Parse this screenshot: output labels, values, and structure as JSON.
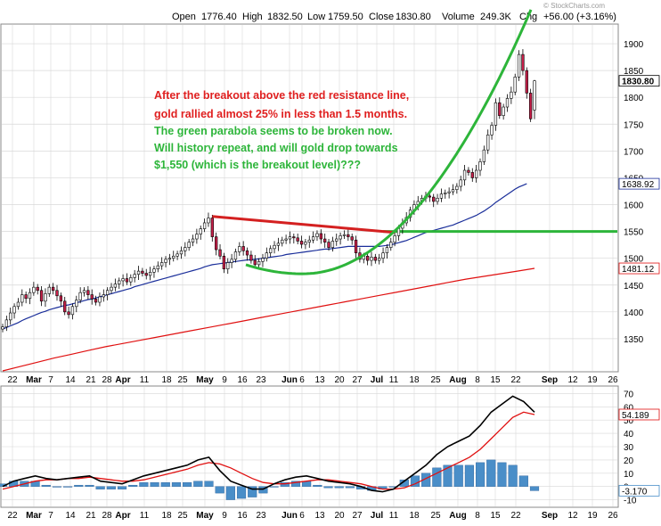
{
  "header": {
    "watermark": "© StockCharts.com",
    "open_label": "Open",
    "open": "1776.40",
    "high_label": "High",
    "high": "1832.50",
    "low_label": "Low",
    "low": "1759.50",
    "close_label": "Close",
    "close": "1830.80",
    "volume_label": "Volume",
    "volume": "249.3K",
    "chg_label": "Chg",
    "chg": "+56.00 (+3.16%)",
    "chg_arrow_color": "#00a000"
  },
  "annotation": {
    "line1": "After the breakout above the red resistance line,",
    "line2": "gold rallied almost 25% in less than 1.5 months.",
    "line3": "The green parabola seems to be broken now.",
    "line4": "Will history repeat, and will gold drop towards",
    "line5": "$1,550 (which is the breakout level)???",
    "red_color": "#e02020",
    "green_color": "#2db53a"
  },
  "colors": {
    "up_candle": "#ffffff",
    "down_candle": "#c8204a",
    "ma_short": "#1a2e9a",
    "ma_long": "#e01010",
    "resistance": "#d42020",
    "parabola": "#2db53a",
    "grid": "#d8d8d8",
    "macd": "#000000",
    "signal": "#e01010",
    "histogram": "#4a8ec8"
  },
  "chart_data": [
    {
      "type": "candlestick",
      "ylim": [
        1290,
        1935
      ],
      "y_ticks": [
        1350,
        1400,
        1450,
        1500,
        1550,
        1600,
        1650,
        1700,
        1750,
        1800,
        1850,
        1900
      ],
      "price_tags": [
        "1830.80",
        "1638.92",
        "1481.12"
      ],
      "price_tag_values": [
        1830.8,
        1638.92,
        1481.12
      ],
      "x_tick_labels": [
        "22",
        "Mar",
        "7",
        "14",
        "21",
        "28",
        "Apr",
        "11",
        "18",
        "25",
        "May",
        "9",
        "16",
        "23",
        "Jun",
        "6",
        "13",
        "20",
        "27",
        "Jul",
        "11",
        "18",
        "25",
        "Aug",
        "8",
        "15",
        "22",
        "Sep",
        "12",
        "19",
        "26"
      ],
      "last_candle": {
        "open": 1776.4,
        "high": 1832.5,
        "low": 1759.5,
        "close": 1830.8
      },
      "closes": [
        1372,
        1385,
        1398,
        1410,
        1418,
        1432,
        1425,
        1436,
        1446,
        1440,
        1420,
        1434,
        1446,
        1440,
        1430,
        1420,
        1400,
        1395,
        1410,
        1422,
        1436,
        1440,
        1432,
        1424,
        1418,
        1428,
        1432,
        1440,
        1446,
        1452,
        1458,
        1462,
        1456,
        1464,
        1470,
        1476,
        1472,
        1468,
        1474,
        1480,
        1486,
        1492,
        1498,
        1500,
        1504,
        1508,
        1514,
        1520,
        1530,
        1536,
        1545,
        1555,
        1566,
        1575,
        1540,
        1516,
        1504,
        1480,
        1492,
        1498,
        1512,
        1522,
        1514,
        1506,
        1496,
        1488,
        1494,
        1500,
        1510,
        1518,
        1524,
        1528,
        1534,
        1536,
        1540,
        1538,
        1532,
        1526,
        1530,
        1534,
        1540,
        1546,
        1536,
        1530,
        1520,
        1532,
        1536,
        1542,
        1544,
        1540,
        1534,
        1510,
        1498,
        1504,
        1496,
        1502,
        1496,
        1500,
        1510,
        1520,
        1530,
        1542,
        1556,
        1566,
        1576,
        1590,
        1600,
        1606,
        1612,
        1616,
        1614,
        1606,
        1612,
        1620,
        1622,
        1624,
        1628,
        1634,
        1646,
        1664,
        1660,
        1650,
        1664,
        1680,
        1702,
        1730,
        1748,
        1790,
        1766,
        1782,
        1798,
        1810,
        1838,
        1880,
        1850,
        1808,
        1760,
        1830.8
      ],
      "ma_short": {
        "name": "",
        "values": [
          1368,
          1371,
          1374,
          1377,
          1380,
          1384,
          1387,
          1390,
          1393,
          1396,
          1399,
          1401,
          1404,
          1406,
          1408,
          1410,
          1412,
          1413,
          1415,
          1417,
          1419,
          1421,
          1423,
          1424,
          1426,
          1428,
          1430,
          1432,
          1434,
          1436,
          1438,
          1440,
          1442,
          1444,
          1447,
          1449,
          1451,
          1453,
          1455,
          1457,
          1459,
          1461,
          1463,
          1465,
          1467,
          1469,
          1471,
          1473,
          1475,
          1477,
          1479,
          1481,
          1484,
          1486,
          1488,
          1489,
          1490,
          1491,
          1492,
          1493,
          1494,
          1495,
          1496,
          1497,
          1497,
          1498,
          1499,
          1500,
          1501,
          1502,
          1503,
          1504,
          1505,
          1507,
          1508,
          1509,
          1510,
          1511,
          1512,
          1513,
          1514,
          1515,
          1516,
          1517,
          1517,
          1518,
          1519,
          1520,
          1521,
          1522,
          1522,
          1522,
          1522,
          1522,
          1522,
          1522,
          1522,
          1522,
          1523,
          1524,
          1525,
          1527,
          1529,
          1531,
          1533,
          1536,
          1539,
          1542,
          1545,
          1548,
          1550,
          1552,
          1554,
          1556,
          1558,
          1560,
          1562,
          1565,
          1568,
          1571,
          1574,
          1577,
          1580,
          1584,
          1588,
          1593,
          1598,
          1604,
          1609,
          1614,
          1619,
          1624,
          1629,
          1633,
          1636,
          1638.92
        ]
      },
      "ma_long": {
        "name": "",
        "values": [
          1290,
          1298,
          1306,
          1314,
          1321,
          1328,
          1335,
          1341,
          1347,
          1353,
          1359,
          1365,
          1371,
          1377,
          1383,
          1389,
          1395,
          1401,
          1407,
          1413,
          1419,
          1425,
          1431,
          1437,
          1443,
          1449,
          1455,
          1461,
          1466,
          1471,
          1476,
          1481.12
        ]
      },
      "resistance_line": [
        [
          54,
          1578
        ],
        [
          101,
          1548
        ]
      ],
      "parabola_label": "",
      "horizontal_level": 1550
    },
    {
      "type": "line",
      "title": "",
      "ylim": [
        -15,
        75
      ],
      "y_ticks": [
        -10,
        0,
        10,
        20,
        30,
        40,
        50,
        60,
        70
      ],
      "y_tick_labels": [
        "-10",
        "0",
        "10",
        "20",
        "30",
        "40",
        "50",
        "60",
        "70"
      ],
      "value_tags": [
        "54.189",
        "-3.170"
      ],
      "x_tick_labels": [
        "22",
        "Mar",
        "7",
        "14",
        "21",
        "28",
        "Apr",
        "11",
        "18",
        "25",
        "May",
        "9",
        "16",
        "23",
        "Jun",
        "6",
        "13",
        "20",
        "27",
        "Jul",
        "11",
        "18",
        "25",
        "Aug",
        "8",
        "15",
        "22",
        "Sep",
        "12",
        "19",
        "26"
      ],
      "series": [
        {
          "name": "",
          "values": [
            0,
            4,
            6,
            8,
            6,
            5,
            6,
            7,
            8,
            4,
            3,
            2,
            5,
            8,
            10,
            12,
            14,
            16,
            20,
            22,
            12,
            4,
            1,
            -2,
            -2,
            2,
            5,
            7,
            8,
            6,
            4,
            3,
            2,
            0,
            -3,
            -4,
            -2,
            4,
            10,
            16,
            24,
            30,
            34,
            38,
            46,
            56,
            62,
            68,
            64,
            56
          ]
        },
        {
          "name": "",
          "values": [
            -2,
            0,
            2,
            4,
            5,
            5,
            6,
            6,
            7,
            6,
            5,
            4,
            4,
            5,
            7,
            9,
            11,
            13,
            16,
            18,
            17,
            14,
            10,
            6,
            3,
            2,
            2,
            3,
            4,
            5,
            5,
            4,
            3,
            2,
            0,
            -2,
            -2,
            -1,
            2,
            6,
            10,
            14,
            18,
            22,
            28,
            36,
            44,
            52,
            56,
            54.19
          ]
        }
      ],
      "histogram": [
        2,
        4,
        4,
        4,
        1,
        0,
        0,
        1,
        1,
        -2,
        -2,
        -2,
        1,
        3,
        3,
        3,
        3,
        3,
        4,
        4,
        -5,
        -10,
        -9,
        -8,
        -5,
        0,
        3,
        4,
        4,
        1,
        -1,
        -1,
        -1,
        -2,
        -3,
        -2,
        0,
        5,
        8,
        10,
        14,
        16,
        16,
        16,
        18,
        20,
        18,
        16,
        8,
        -3.17
      ]
    }
  ]
}
